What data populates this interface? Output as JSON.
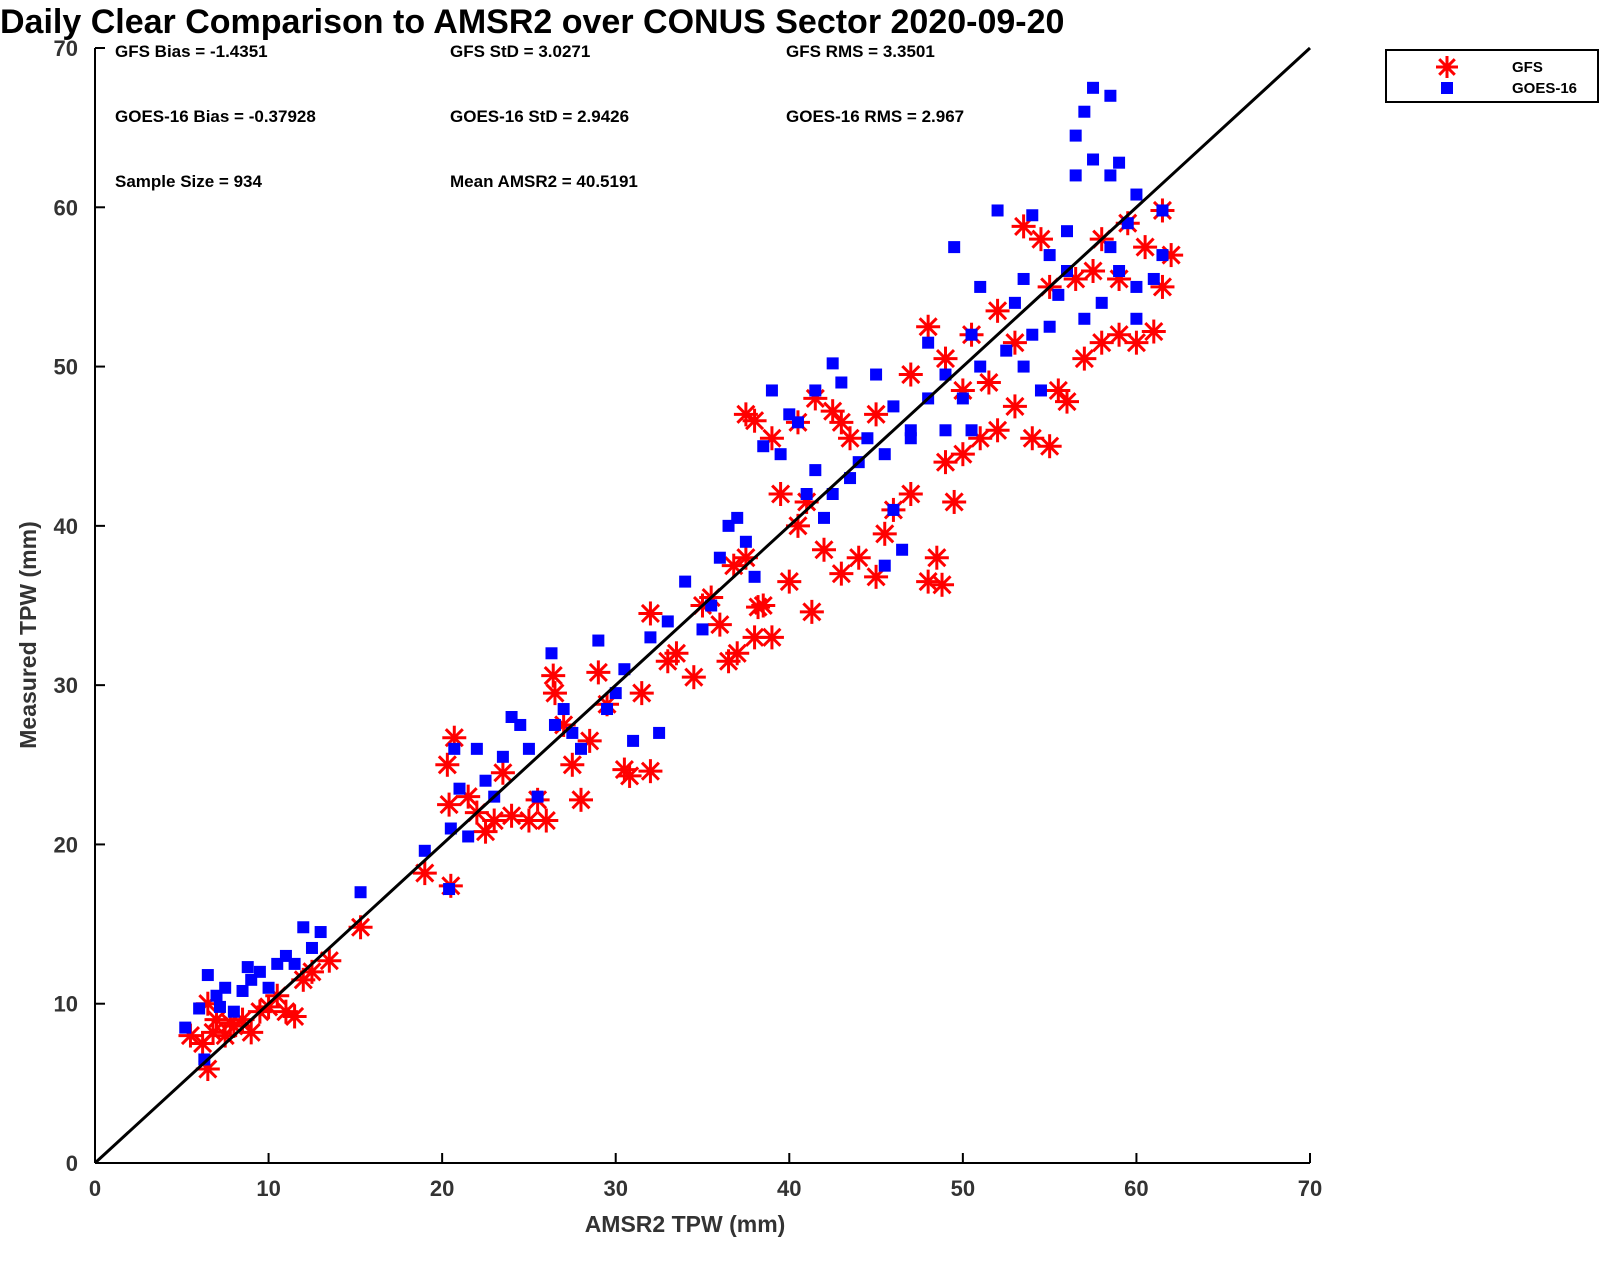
{
  "chart_data": {
    "type": "scatter",
    "title": "Daily Clear Comparison to AMSR2 over CONUS Sector 2020-09-20",
    "xlabel": "AMSR2 TPW (mm)",
    "ylabel": "Measured TPW (mm)",
    "xlim": [
      0,
      70
    ],
    "ylim": [
      0,
      70
    ],
    "xticks": [
      "0",
      "10",
      "20",
      "30",
      "40",
      "50",
      "60",
      "70"
    ],
    "yticks": [
      "0",
      "10",
      "20",
      "30",
      "40",
      "50",
      "60",
      "70"
    ],
    "grid": false,
    "legend_position": "outside-top-right",
    "reference_line": {
      "x": [
        0,
        70
      ],
      "y": [
        0,
        70
      ]
    },
    "stats": [
      [
        "GFS Bias = -1.4351",
        "GFS StD = 3.0271",
        "GFS RMS = 3.3501"
      ],
      [
        "GOES-16 Bias = -0.37928",
        "GOES-16 StD = 2.9426",
        "GOES-16 RMS = 2.967"
      ],
      [
        "Sample Size = 934",
        "Mean AMSR2 = 40.5191",
        ""
      ]
    ],
    "series": [
      {
        "name": "GFS",
        "marker": "asterisk",
        "color": "#ff0000",
        "points": [
          [
            5.5,
            8.0
          ],
          [
            6.2,
            7.5
          ],
          [
            6.5,
            5.9
          ],
          [
            6.8,
            8.2
          ],
          [
            7.0,
            9.0
          ],
          [
            7.5,
            8.0
          ],
          [
            8.0,
            8.6
          ],
          [
            8.5,
            9.0
          ],
          [
            9.0,
            8.2
          ],
          [
            9.5,
            9.5
          ],
          [
            10.0,
            9.8
          ],
          [
            10.5,
            10.5
          ],
          [
            11.0,
            9.5
          ],
          [
            11.5,
            9.2
          ],
          [
            12.0,
            11.5
          ],
          [
            12.5,
            12.0
          ],
          [
            13.5,
            12.7
          ],
          [
            15.3,
            14.8
          ],
          [
            6.5,
            10.0
          ],
          [
            7.8,
            8.8
          ],
          [
            19.0,
            18.2
          ],
          [
            20.5,
            17.4
          ],
          [
            20.4,
            22.5
          ],
          [
            20.7,
            26.7
          ],
          [
            20.3,
            25.0
          ],
          [
            21.5,
            23.0
          ],
          [
            22.0,
            22.0
          ],
          [
            22.5,
            20.8
          ],
          [
            23.0,
            21.5
          ],
          [
            23.5,
            24.5
          ],
          [
            24.0,
            21.8
          ],
          [
            25.0,
            21.5
          ],
          [
            25.5,
            22.8
          ],
          [
            26.0,
            21.5
          ],
          [
            26.4,
            30.6
          ],
          [
            26.5,
            29.5
          ],
          [
            27.0,
            27.5
          ],
          [
            27.5,
            25.0
          ],
          [
            28.0,
            22.8
          ],
          [
            28.5,
            26.5
          ],
          [
            29.0,
            30.8
          ],
          [
            29.5,
            28.8
          ],
          [
            30.5,
            24.7
          ],
          [
            30.8,
            24.3
          ],
          [
            32.0,
            24.6
          ],
          [
            31.5,
            29.5
          ],
          [
            32.0,
            34.5
          ],
          [
            33.0,
            31.5
          ],
          [
            33.5,
            32.0
          ],
          [
            34.5,
            30.5
          ],
          [
            35.0,
            35.0
          ],
          [
            35.5,
            35.5
          ],
          [
            36.0,
            33.8
          ],
          [
            36.5,
            31.5
          ],
          [
            36.8,
            37.5
          ],
          [
            37.0,
            32.0
          ],
          [
            37.5,
            38.0
          ],
          [
            38.0,
            33.0
          ],
          [
            38.2,
            34.9
          ],
          [
            38.5,
            35.0
          ],
          [
            39.0,
            33.0
          ],
          [
            39.5,
            42.0
          ],
          [
            40.0,
            36.5
          ],
          [
            40.5,
            40.0
          ],
          [
            41.0,
            41.5
          ],
          [
            41.3,
            34.6
          ],
          [
            42.0,
            38.5
          ],
          [
            43.0,
            37.0
          ],
          [
            44.0,
            38.0
          ],
          [
            45.0,
            36.8
          ],
          [
            45.5,
            39.5
          ],
          [
            46.0,
            41.0
          ],
          [
            47.0,
            42.0
          ],
          [
            48.0,
            36.5
          ],
          [
            48.5,
            38.0
          ],
          [
            48.8,
            36.3
          ],
          [
            49.0,
            44.0
          ],
          [
            49.5,
            41.5
          ],
          [
            50.0,
            44.5
          ],
          [
            51.0,
            45.5
          ],
          [
            52.0,
            46.0
          ],
          [
            53.0,
            47.5
          ],
          [
            54.0,
            45.5
          ],
          [
            55.0,
            45.0
          ],
          [
            55.5,
            48.5
          ],
          [
            56.0,
            47.8
          ],
          [
            57.0,
            50.5
          ],
          [
            58.0,
            51.5
          ],
          [
            59.0,
            52.0
          ],
          [
            60.0,
            51.5
          ],
          [
            61.0,
            52.2
          ],
          [
            61.5,
            55.0
          ],
          [
            61.5,
            59.8
          ],
          [
            60.5,
            57.5
          ],
          [
            59.5,
            59.0
          ],
          [
            58.0,
            58.0
          ],
          [
            56.5,
            55.5
          ],
          [
            55.0,
            55.0
          ],
          [
            53.5,
            58.8
          ],
          [
            52.0,
            53.5
          ],
          [
            50.5,
            52.0
          ],
          [
            49.0,
            50.5
          ],
          [
            48.0,
            52.5
          ],
          [
            47.0,
            49.5
          ],
          [
            45.0,
            47.0
          ],
          [
            43.0,
            46.5
          ],
          [
            41.5,
            48.0
          ],
          [
            40.5,
            46.5
          ],
          [
            39.0,
            45.5
          ],
          [
            38.0,
            46.6
          ],
          [
            37.5,
            47.0
          ],
          [
            43.5,
            45.5
          ],
          [
            42.5,
            47.2
          ],
          [
            54.5,
            58.0
          ],
          [
            57.5,
            56.0
          ],
          [
            59.0,
            55.5
          ],
          [
            62.0,
            57.0
          ],
          [
            50.0,
            48.5
          ],
          [
            51.5,
            49.0
          ],
          [
            53.0,
            51.5
          ]
        ]
      },
      {
        "name": "GOES-16",
        "marker": "square",
        "color": "#0000ff",
        "points": [
          [
            5.2,
            8.5
          ],
          [
            6.3,
            6.5
          ],
          [
            6.5,
            11.8
          ],
          [
            7.0,
            10.5
          ],
          [
            7.5,
            11.0
          ],
          [
            8.0,
            9.5
          ],
          [
            8.5,
            10.8
          ],
          [
            9.0,
            11.5
          ],
          [
            9.5,
            12.0
          ],
          [
            10.0,
            11.0
          ],
          [
            10.5,
            12.5
          ],
          [
            11.0,
            13.0
          ],
          [
            11.5,
            12.5
          ],
          [
            12.0,
            14.8
          ],
          [
            12.5,
            13.5
          ],
          [
            13.0,
            14.5
          ],
          [
            15.3,
            17.0
          ],
          [
            7.2,
            9.8
          ],
          [
            8.8,
            12.3
          ],
          [
            6.0,
            9.7
          ],
          [
            19.0,
            19.6
          ],
          [
            20.4,
            17.2
          ],
          [
            20.5,
            21.0
          ],
          [
            20.7,
            26.0
          ],
          [
            21.0,
            23.5
          ],
          [
            21.5,
            20.5
          ],
          [
            22.0,
            26.0
          ],
          [
            22.5,
            24.0
          ],
          [
            23.0,
            23.0
          ],
          [
            23.5,
            25.5
          ],
          [
            24.0,
            28.0
          ],
          [
            24.5,
            27.5
          ],
          [
            25.0,
            26.0
          ],
          [
            25.5,
            23.0
          ],
          [
            26.3,
            32.0
          ],
          [
            26.5,
            27.5
          ],
          [
            27.0,
            28.5
          ],
          [
            27.5,
            27.0
          ],
          [
            28.0,
            26.0
          ],
          [
            29.0,
            32.8
          ],
          [
            29.5,
            28.5
          ],
          [
            30.0,
            29.5
          ],
          [
            30.5,
            31.0
          ],
          [
            31.0,
            26.5
          ],
          [
            32.5,
            27.0
          ],
          [
            32.0,
            33.0
          ],
          [
            33.0,
            34.0
          ],
          [
            34.0,
            36.5
          ],
          [
            35.0,
            33.5
          ],
          [
            35.5,
            35.0
          ],
          [
            36.0,
            38.0
          ],
          [
            36.5,
            40.0
          ],
          [
            37.0,
            40.5
          ],
          [
            37.5,
            39.0
          ],
          [
            38.0,
            36.8
          ],
          [
            38.5,
            45.0
          ],
          [
            39.0,
            48.5
          ],
          [
            39.5,
            44.5
          ],
          [
            40.0,
            47.0
          ],
          [
            40.5,
            46.5
          ],
          [
            41.0,
            42.0
          ],
          [
            41.5,
            48.5
          ],
          [
            42.0,
            40.5
          ],
          [
            42.5,
            50.2
          ],
          [
            43.0,
            49.0
          ],
          [
            44.0,
            44.0
          ],
          [
            45.0,
            49.5
          ],
          [
            46.0,
            41.0
          ],
          [
            47.0,
            45.5
          ],
          [
            48.0,
            51.5
          ],
          [
            49.0,
            46.0
          ],
          [
            49.5,
            57.5
          ],
          [
            50.0,
            48.0
          ],
          [
            51.0,
            55.0
          ],
          [
            52.0,
            59.8
          ],
          [
            53.0,
            54.0
          ],
          [
            54.0,
            59.5
          ],
          [
            55.0,
            52.5
          ],
          [
            56.0,
            56.0
          ],
          [
            56.5,
            64.5
          ],
          [
            56.5,
            62.0
          ],
          [
            57.0,
            66.0
          ],
          [
            57.5,
            67.5
          ],
          [
            58.5,
            67.0
          ],
          [
            57.5,
            63.0
          ],
          [
            58.5,
            62.0
          ],
          [
            59.0,
            62.8
          ],
          [
            59.5,
            59.0
          ],
          [
            60.0,
            60.8
          ],
          [
            60.0,
            55.0
          ],
          [
            61.0,
            55.5
          ],
          [
            61.5,
            59.8
          ],
          [
            61.5,
            57.0
          ],
          [
            59.0,
            56.0
          ],
          [
            58.0,
            54.0
          ],
          [
            57.0,
            53.0
          ],
          [
            55.5,
            54.5
          ],
          [
            54.0,
            52.0
          ],
          [
            52.5,
            51.0
          ],
          [
            51.0,
            50.0
          ],
          [
            50.5,
            52.0
          ],
          [
            49.0,
            49.5
          ],
          [
            48.0,
            48.0
          ],
          [
            47.0,
            46.0
          ],
          [
            46.0,
            47.5
          ],
          [
            45.5,
            44.5
          ],
          [
            44.5,
            45.5
          ],
          [
            43.5,
            43.0
          ],
          [
            42.5,
            42.0
          ],
          [
            41.5,
            43.5
          ],
          [
            46.5,
            38.5
          ],
          [
            45.5,
            37.5
          ],
          [
            50.5,
            46.0
          ],
          [
            53.5,
            55.5
          ],
          [
            55.0,
            57.0
          ],
          [
            56.0,
            58.5
          ],
          [
            58.5,
            57.5
          ],
          [
            60.0,
            53.0
          ],
          [
            53.5,
            50.0
          ],
          [
            54.5,
            48.5
          ]
        ]
      }
    ]
  }
}
